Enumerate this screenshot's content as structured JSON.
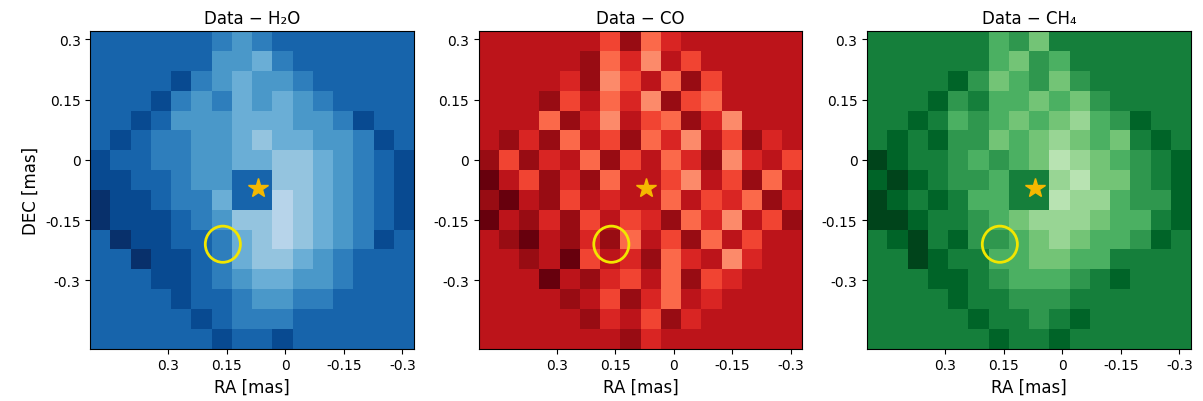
{
  "chart_data": [
    {
      "type": "heatmap",
      "title": "Data − H₂O",
      "x_label": "RA [mas]",
      "y_label": "DEC [mas]",
      "xlim": [
        0.5,
        -0.33
      ],
      "ylim": [
        -0.47,
        0.32
      ],
      "xticks": [
        0.3,
        0.15,
        0,
        -0.15,
        -0.3
      ],
      "yticks": [
        0.3,
        0.15,
        0,
        -0.15,
        -0.3
      ],
      "color_range": [
        0,
        1
      ],
      "star": {
        "x": 0.07,
        "y": -0.07
      },
      "circle": {
        "x": 0.16,
        "y": -0.21,
        "r": 0.045
      },
      "cells": [
        [
          0.8,
          0.8,
          0.8,
          0.8,
          0.8,
          0.8,
          0.7,
          0.6,
          0.7,
          0.8,
          0.8,
          0.8,
          0.8,
          0.8,
          0.8,
          0.8
        ],
        [
          0.8,
          0.8,
          0.8,
          0.8,
          0.8,
          0.8,
          0.6,
          0.6,
          0.5,
          0.7,
          0.8,
          0.8,
          0.8,
          0.8,
          0.8,
          0.8
        ],
        [
          0.8,
          0.8,
          0.8,
          0.8,
          0.9,
          0.7,
          0.6,
          0.5,
          0.6,
          0.6,
          0.7,
          0.8,
          0.8,
          0.8,
          0.8,
          0.8
        ],
        [
          0.8,
          0.8,
          0.8,
          0.9,
          0.7,
          0.6,
          0.7,
          0.5,
          0.6,
          0.5,
          0.6,
          0.7,
          0.8,
          0.8,
          0.8,
          0.8
        ],
        [
          0.8,
          0.8,
          0.9,
          0.8,
          0.6,
          0.6,
          0.6,
          0.5,
          0.5,
          0.5,
          0.6,
          0.6,
          0.7,
          0.9,
          0.8,
          0.8
        ],
        [
          0.8,
          0.9,
          0.8,
          0.7,
          0.7,
          0.6,
          0.6,
          0.5,
          0.4,
          0.5,
          0.5,
          0.6,
          0.6,
          0.7,
          0.9,
          0.8
        ],
        [
          0.9,
          0.8,
          0.8,
          0.7,
          0.7,
          0.6,
          0.6,
          0.5,
          0.5,
          0.4,
          0.4,
          0.5,
          0.6,
          0.7,
          0.8,
          0.9
        ],
        [
          0.9,
          0.9,
          0.8,
          0.8,
          0.7,
          0.6,
          0.6,
          0.8,
          0.8,
          0.4,
          0.4,
          0.5,
          0.6,
          0.7,
          0.8,
          0.9
        ],
        [
          1.0,
          0.9,
          0.9,
          0.8,
          0.7,
          0.7,
          0.5,
          0.8,
          0.8,
          0.3,
          0.4,
          0.5,
          0.6,
          0.7,
          0.8,
          0.9
        ],
        [
          1.0,
          0.9,
          0.9,
          0.9,
          0.8,
          0.7,
          0.6,
          0.4,
          0.4,
          0.3,
          0.4,
          0.5,
          0.6,
          0.7,
          0.8,
          0.9
        ],
        [
          0.8,
          1.0,
          0.9,
          0.9,
          0.8,
          0.8,
          0.7,
          0.5,
          0.4,
          0.3,
          0.4,
          0.5,
          0.6,
          0.7,
          0.9,
          0.8
        ],
        [
          0.8,
          0.8,
          1.0,
          0.9,
          0.9,
          0.8,
          0.7,
          0.5,
          0.4,
          0.4,
          0.5,
          0.6,
          0.7,
          0.8,
          0.8,
          0.8
        ],
        [
          0.8,
          0.8,
          0.8,
          0.9,
          0.9,
          0.8,
          0.7,
          0.6,
          0.5,
          0.5,
          0.6,
          0.6,
          0.7,
          0.8,
          0.8,
          0.8
        ],
        [
          0.8,
          0.8,
          0.8,
          0.8,
          0.9,
          0.8,
          0.8,
          0.7,
          0.6,
          0.6,
          0.7,
          0.7,
          0.8,
          0.8,
          0.8,
          0.8
        ],
        [
          0.8,
          0.8,
          0.8,
          0.8,
          0.8,
          0.9,
          0.8,
          0.7,
          0.7,
          0.7,
          0.8,
          0.8,
          0.8,
          0.8,
          0.8,
          0.8
        ],
        [
          0.8,
          0.8,
          0.8,
          0.8,
          0.8,
          0.8,
          0.9,
          0.8,
          0.8,
          0.9,
          0.8,
          0.8,
          0.8,
          0.8,
          0.8,
          0.8
        ]
      ]
    },
    {
      "type": "heatmap",
      "title": "Data − CO",
      "x_label": "RA [mas]",
      "xlim": [
        0.5,
        -0.33
      ],
      "ylim": [
        -0.47,
        0.32
      ],
      "xticks": [
        0.3,
        0.15,
        0,
        -0.15,
        -0.3
      ],
      "yticks": [
        0.3,
        0.15,
        0,
        -0.15,
        -0.3
      ],
      "color_range": [
        0,
        1
      ],
      "star": {
        "x": 0.07,
        "y": -0.07
      },
      "circle": {
        "x": 0.16,
        "y": -0.21,
        "r": 0.045
      },
      "cells": [
        [
          0.8,
          0.8,
          0.8,
          0.8,
          0.8,
          0.8,
          0.6,
          0.9,
          0.5,
          0.7,
          0.8,
          0.8,
          0.8,
          0.8,
          0.8,
          0.8
        ],
        [
          0.8,
          0.8,
          0.8,
          0.8,
          0.8,
          0.9,
          0.5,
          0.7,
          0.4,
          0.8,
          0.6,
          0.8,
          0.8,
          0.8,
          0.8,
          0.8
        ],
        [
          0.8,
          0.8,
          0.8,
          0.8,
          0.7,
          0.9,
          0.4,
          0.6,
          0.8,
          0.5,
          0.9,
          0.6,
          0.8,
          0.8,
          0.8,
          0.8
        ],
        [
          0.8,
          0.8,
          0.8,
          0.9,
          0.6,
          0.8,
          0.5,
          0.7,
          0.4,
          0.9,
          0.6,
          0.5,
          0.8,
          0.8,
          0.8,
          0.8
        ],
        [
          0.8,
          0.8,
          0.8,
          0.5,
          0.9,
          0.7,
          0.4,
          0.8,
          0.6,
          0.5,
          0.9,
          0.7,
          0.4,
          0.8,
          0.8,
          0.8
        ],
        [
          0.8,
          0.9,
          0.7,
          0.9,
          0.5,
          0.8,
          0.6,
          0.9,
          0.5,
          0.7,
          0.4,
          0.8,
          0.6,
          0.9,
          0.7,
          0.8
        ],
        [
          0.9,
          0.6,
          0.9,
          0.7,
          0.8,
          0.5,
          0.9,
          0.6,
          0.8,
          0.5,
          0.7,
          0.9,
          0.4,
          0.7,
          0.8,
          0.6
        ],
        [
          1.0,
          0.8,
          0.6,
          0.9,
          0.7,
          0.9,
          0.5,
          0.8,
          0.8,
          0.6,
          0.4,
          0.8,
          0.6,
          0.9,
          0.5,
          0.8
        ],
        [
          0.9,
          1.0,
          0.8,
          0.9,
          0.6,
          0.8,
          0.7,
          0.8,
          0.8,
          0.5,
          0.8,
          0.6,
          0.7,
          0.5,
          0.9,
          0.7
        ],
        [
          1.0,
          0.8,
          0.9,
          0.7,
          0.9,
          0.6,
          0.8,
          0.6,
          0.7,
          0.9,
          0.5,
          0.7,
          0.4,
          0.8,
          0.6,
          0.9
        ],
        [
          0.8,
          0.9,
          1.0,
          0.8,
          0.9,
          0.7,
          0.9,
          0.5,
          0.8,
          0.6,
          0.9,
          0.5,
          0.8,
          0.6,
          0.8,
          0.8
        ],
        [
          0.8,
          0.8,
          0.9,
          0.8,
          1.0,
          0.6,
          0.8,
          0.7,
          0.9,
          0.5,
          0.7,
          0.8,
          0.4,
          0.7,
          0.8,
          0.8
        ],
        [
          0.8,
          0.8,
          0.8,
          1.0,
          0.8,
          0.9,
          0.7,
          0.6,
          0.8,
          0.5,
          0.9,
          0.6,
          0.7,
          0.8,
          0.8,
          0.8
        ],
        [
          0.8,
          0.8,
          0.8,
          0.8,
          0.9,
          0.8,
          0.6,
          0.9,
          0.7,
          0.5,
          0.8,
          0.7,
          0.8,
          0.8,
          0.8,
          0.8
        ],
        [
          0.8,
          0.8,
          0.8,
          0.8,
          0.8,
          0.9,
          0.7,
          0.8,
          0.6,
          0.9,
          0.7,
          0.8,
          0.8,
          0.8,
          0.8,
          0.8
        ],
        [
          0.8,
          0.8,
          0.8,
          0.8,
          0.8,
          0.8,
          0.8,
          0.9,
          0.7,
          0.8,
          0.8,
          0.8,
          0.8,
          0.8,
          0.8,
          0.8
        ]
      ]
    },
    {
      "type": "heatmap",
      "title": "Data − CH₄",
      "x_label": "RA [mas]",
      "xlim": [
        0.5,
        -0.33
      ],
      "ylim": [
        -0.47,
        0.32
      ],
      "xticks": [
        0.3,
        0.15,
        0,
        -0.15,
        -0.3
      ],
      "yticks": [
        0.3,
        0.15,
        0,
        -0.15,
        -0.3
      ],
      "color_range": [
        0,
        1
      ],
      "star": {
        "x": 0.07,
        "y": -0.07
      },
      "circle": {
        "x": 0.16,
        "y": -0.21,
        "r": 0.045
      },
      "cells": [
        [
          0.8,
          0.8,
          0.8,
          0.8,
          0.8,
          0.8,
          0.6,
          0.7,
          0.5,
          0.8,
          0.8,
          0.8,
          0.8,
          0.8,
          0.8,
          0.8
        ],
        [
          0.8,
          0.8,
          0.8,
          0.8,
          0.8,
          0.8,
          0.6,
          0.5,
          0.7,
          0.6,
          0.8,
          0.8,
          0.8,
          0.8,
          0.8,
          0.8
        ],
        [
          0.8,
          0.8,
          0.8,
          0.8,
          0.9,
          0.7,
          0.5,
          0.6,
          0.7,
          0.5,
          0.7,
          0.8,
          0.8,
          0.8,
          0.8,
          0.8
        ],
        [
          0.8,
          0.8,
          0.8,
          0.9,
          0.7,
          0.8,
          0.6,
          0.6,
          0.5,
          0.6,
          0.5,
          0.7,
          0.8,
          0.8,
          0.8,
          0.8
        ],
        [
          0.8,
          0.8,
          0.9,
          0.8,
          0.6,
          0.7,
          0.6,
          0.5,
          0.6,
          0.5,
          0.4,
          0.6,
          0.7,
          0.9,
          0.8,
          0.8
        ],
        [
          0.8,
          0.9,
          0.8,
          0.9,
          0.7,
          0.7,
          0.5,
          0.6,
          0.5,
          0.4,
          0.5,
          0.6,
          0.5,
          0.8,
          0.9,
          0.8
        ],
        [
          1.0,
          0.9,
          0.8,
          0.8,
          0.7,
          0.6,
          0.7,
          0.6,
          0.5,
          0.3,
          0.4,
          0.5,
          0.6,
          0.7,
          0.8,
          0.9
        ],
        [
          0.9,
          1.0,
          0.9,
          0.8,
          0.7,
          0.7,
          0.6,
          0.8,
          0.8,
          0.4,
          0.3,
          0.5,
          0.5,
          0.7,
          0.8,
          0.9
        ],
        [
          1.0,
          0.9,
          0.8,
          0.9,
          0.8,
          0.6,
          0.6,
          0.8,
          0.8,
          0.3,
          0.4,
          0.4,
          0.6,
          0.7,
          0.7,
          0.9
        ],
        [
          1.0,
          1.0,
          0.9,
          0.8,
          0.8,
          0.7,
          0.6,
          0.5,
          0.4,
          0.4,
          0.4,
          0.5,
          0.6,
          0.6,
          0.8,
          0.9
        ],
        [
          0.8,
          0.9,
          1.0,
          0.8,
          0.9,
          0.7,
          0.7,
          0.6,
          0.5,
          0.4,
          0.5,
          0.6,
          0.6,
          0.7,
          0.9,
          0.8
        ],
        [
          0.8,
          0.8,
          1.0,
          0.9,
          0.8,
          0.8,
          0.6,
          0.6,
          0.5,
          0.5,
          0.6,
          0.6,
          0.8,
          0.8,
          0.8,
          0.8
        ],
        [
          0.8,
          0.8,
          0.8,
          0.9,
          0.9,
          0.8,
          0.7,
          0.6,
          0.6,
          0.6,
          0.7,
          0.8,
          0.9,
          0.8,
          0.8,
          0.8
        ],
        [
          0.8,
          0.8,
          0.8,
          0.8,
          0.9,
          0.8,
          0.8,
          0.7,
          0.7,
          0.7,
          0.8,
          0.8,
          0.8,
          0.8,
          0.8,
          0.8
        ],
        [
          0.8,
          0.8,
          0.8,
          0.8,
          0.8,
          0.9,
          0.8,
          0.8,
          0.7,
          0.8,
          0.9,
          0.8,
          0.8,
          0.8,
          0.8,
          0.8
        ],
        [
          0.8,
          0.8,
          0.8,
          0.8,
          0.8,
          0.8,
          0.9,
          0.8,
          0.8,
          0.9,
          0.8,
          0.8,
          0.8,
          0.8,
          0.8,
          0.8
        ]
      ]
    }
  ]
}
